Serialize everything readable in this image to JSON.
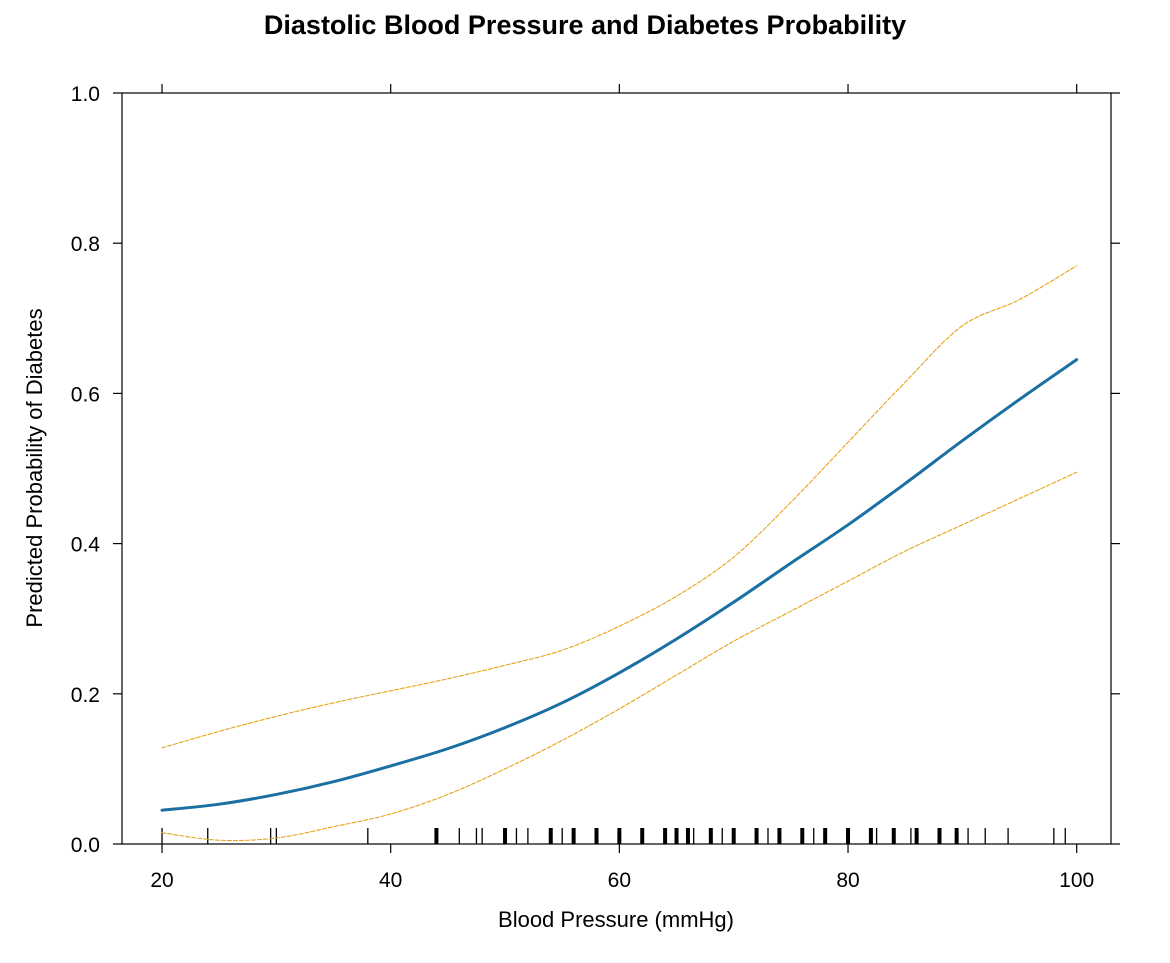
{
  "chart_data": {
    "type": "line",
    "title": "Diastolic Blood Pressure and Diabetes Probability",
    "xlabel": "Blood Pressure (mmHg)",
    "ylabel": "Predicted Probability of Diabetes",
    "xlim": [
      16.5,
      103
    ],
    "ylim": [
      0,
      1.0
    ],
    "x_ticks": [
      20,
      40,
      60,
      80,
      100
    ],
    "x_tick_labels": [
      "20",
      "40",
      "60",
      "80",
      "100"
    ],
    "y_ticks": [
      0,
      0.2,
      0.4,
      0.6,
      0.8,
      1.0
    ],
    "y_tick_labels": [
      "0.0",
      "0.2",
      "0.4",
      "0.6",
      "0.8",
      "1.0"
    ],
    "grid": false,
    "x": [
      20,
      25,
      30,
      35,
      40,
      45,
      50,
      55,
      60,
      65,
      70,
      75,
      80,
      85,
      90,
      95,
      100
    ],
    "series": [
      {
        "role": "fit",
        "color": "#1a6fa3",
        "values": [
          0.045,
          0.053,
          0.066,
          0.083,
          0.104,
          0.127,
          0.155,
          0.188,
          0.228,
          0.273,
          0.322,
          0.374,
          0.425,
          0.48,
          0.537,
          0.592,
          0.645
        ]
      },
      {
        "role": "upper-ci",
        "color": "#e8a317",
        "values": [
          0.128,
          0.15,
          0.17,
          0.188,
          0.204,
          0.22,
          0.238,
          0.258,
          0.29,
          0.33,
          0.382,
          0.455,
          0.535,
          0.615,
          0.69,
          0.725,
          0.77
        ]
      },
      {
        "role": "lower-ci",
        "color": "#e8a317",
        "values": [
          0.015,
          0.005,
          0.008,
          0.023,
          0.04,
          0.066,
          0.1,
          0.138,
          0.18,
          0.225,
          0.27,
          0.31,
          0.35,
          0.39,
          0.425,
          0.46,
          0.495
        ]
      }
    ],
    "rug": {
      "color": "#000000",
      "thin": [
        20,
        24,
        29.5,
        30,
        38,
        44,
        46,
        47.5,
        48,
        51,
        52,
        55,
        64,
        66.5,
        69,
        73,
        74,
        77,
        82.5,
        85.5,
        86,
        90.5,
        92,
        94,
        98,
        99
      ],
      "thick": [
        44,
        50,
        54,
        56,
        58,
        60,
        62,
        64,
        65,
        66,
        68,
        70,
        72,
        74,
        76,
        78,
        80,
        82,
        84,
        86,
        88,
        89.5
      ]
    }
  }
}
